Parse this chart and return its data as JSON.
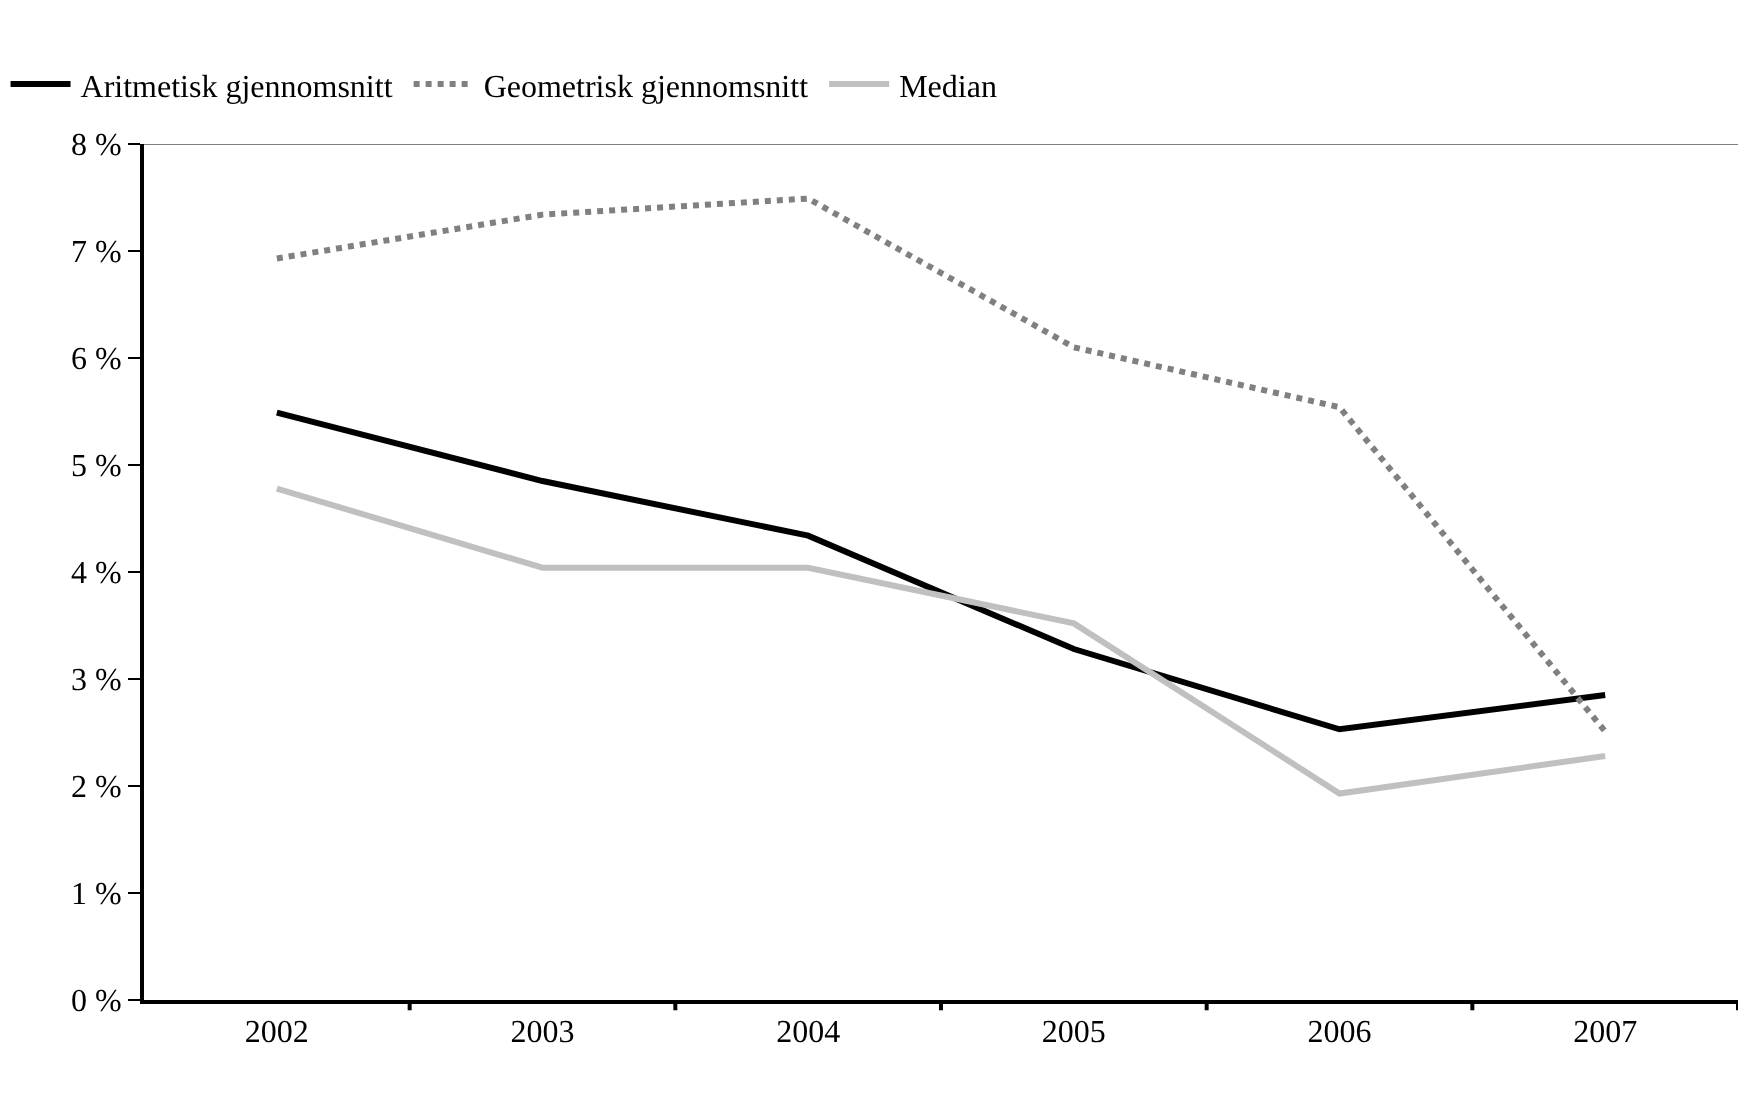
{
  "chart_data": {
    "type": "line",
    "categories": [
      "2002",
      "2003",
      "2004",
      "2005",
      "2006",
      "2007"
    ],
    "series": [
      {
        "name": "Aritmetisk gjennomsnitt",
        "color": "#000000",
        "line_style": "solid",
        "values": [
          5.49,
          4.85,
          4.34,
          3.28,
          2.53,
          2.85
        ]
      },
      {
        "name": "Geometrisk gjennomsnitt",
        "color": "#808080",
        "line_style": "dotted",
        "values": [
          6.93,
          7.34,
          7.49,
          6.1,
          5.54,
          2.51
        ]
      },
      {
        "name": "Median",
        "color": "#c0c0c0",
        "line_style": "solid",
        "values": [
          4.78,
          4.04,
          4.04,
          3.52,
          1.93,
          2.28
        ]
      }
    ],
    "ylim": [
      0,
      8
    ],
    "yticks": [
      {
        "value": 0,
        "label": "0 %"
      },
      {
        "value": 1,
        "label": "1 %"
      },
      {
        "value": 2,
        "label": "2 %"
      },
      {
        "value": 3,
        "label": "3 %"
      },
      {
        "value": 4,
        "label": "4 %"
      },
      {
        "value": 5,
        "label": "5 %"
      },
      {
        "value": 6,
        "label": "6 %"
      },
      {
        "value": 7,
        "label": "7 %"
      },
      {
        "value": 8,
        "label": "8 %"
      }
    ],
    "ref_lines": [
      {
        "axis": "y",
        "value": 8,
        "color": "#808080"
      }
    ],
    "grid": false,
    "legend": "top left",
    "marker": "none"
  }
}
